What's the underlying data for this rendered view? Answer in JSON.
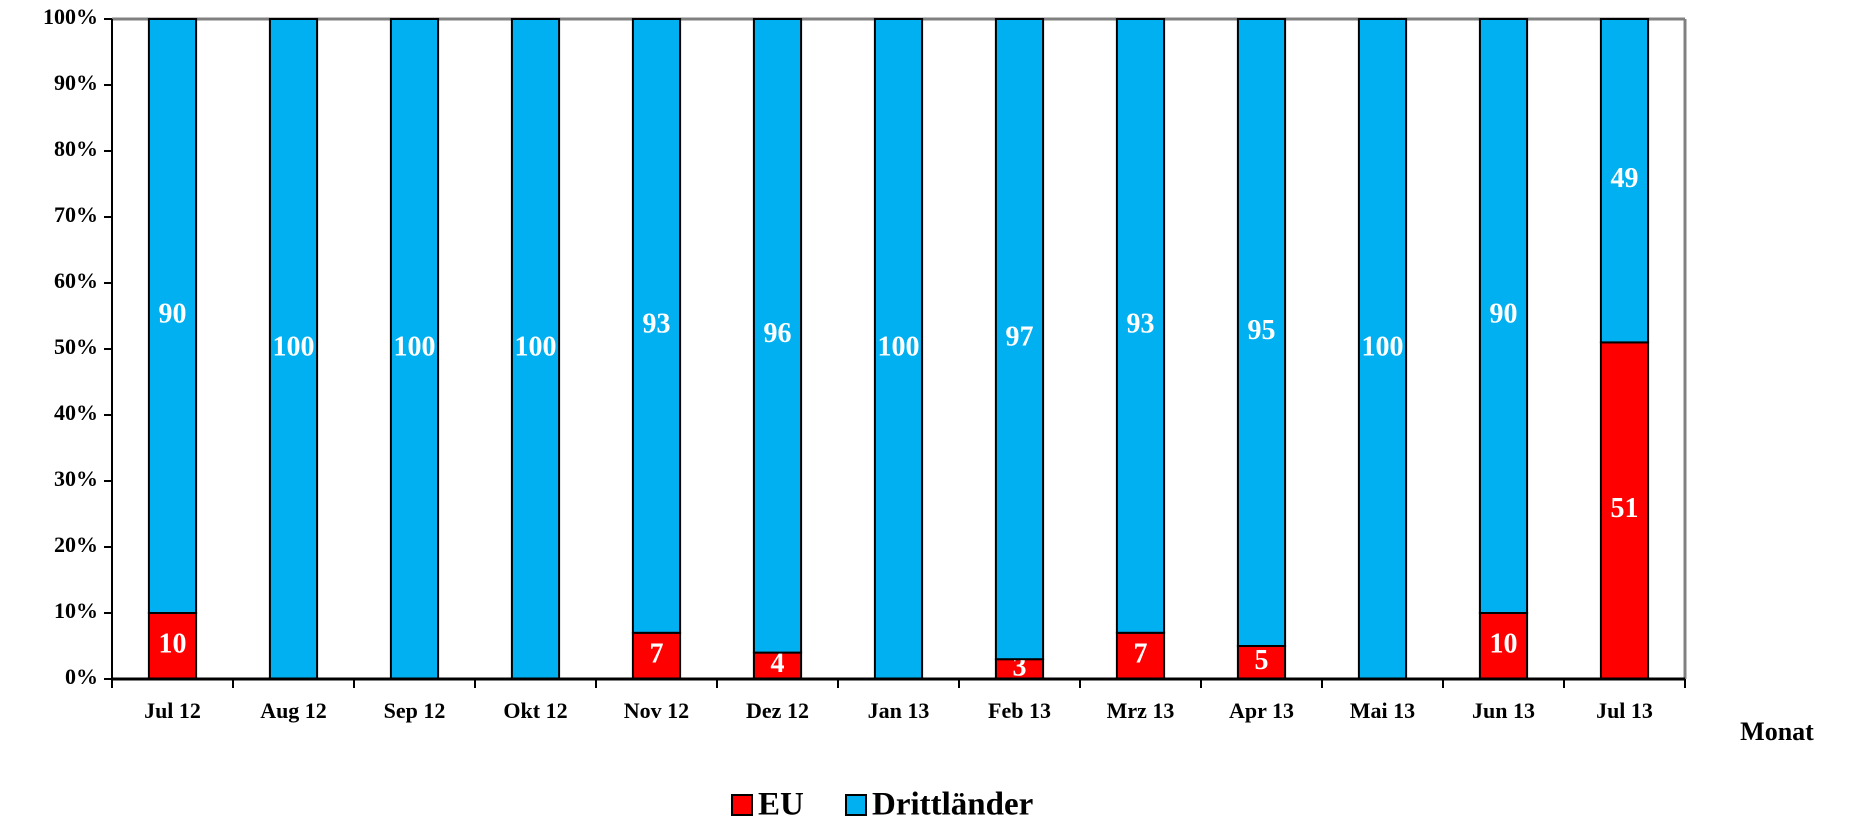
{
  "chart_data": {
    "type": "stacked_bar",
    "x_label": "Monat",
    "categories": [
      "Jul 12",
      "Aug 12",
      "Sep 12",
      "Okt 12",
      "Nov 12",
      "Dez 12",
      "Jan 13",
      "Feb 13",
      "Mrz 13",
      "Apr 13",
      "Mai 13",
      "Jun 13",
      "Jul 13"
    ],
    "series": [
      {
        "name": "EU",
        "color": "#ff0000",
        "values": [
          10,
          0,
          0,
          0,
          7,
          4,
          0,
          3,
          7,
          5,
          0,
          10,
          51
        ]
      },
      {
        "name": "Drittländer",
        "color": "#00b0f0",
        "values": [
          90,
          100,
          100,
          100,
          93,
          96,
          100,
          97,
          93,
          95,
          100,
          90,
          49
        ]
      }
    ],
    "ylim": [
      0,
      100
    ],
    "yticks": [
      {
        "value": 0,
        "label": "0%"
      },
      {
        "value": 10,
        "label": "10%"
      },
      {
        "value": 20,
        "label": "20%"
      },
      {
        "value": 30,
        "label": "30%"
      },
      {
        "value": 40,
        "label": "40%"
      },
      {
        "value": 50,
        "label": "50%"
      },
      {
        "value": 60,
        "label": "60%"
      },
      {
        "value": 70,
        "label": "70%"
      },
      {
        "value": 80,
        "label": "80%"
      },
      {
        "value": 90,
        "label": "90%"
      },
      {
        "value": 100,
        "label": "100%"
      }
    ],
    "legend": "bottom"
  }
}
